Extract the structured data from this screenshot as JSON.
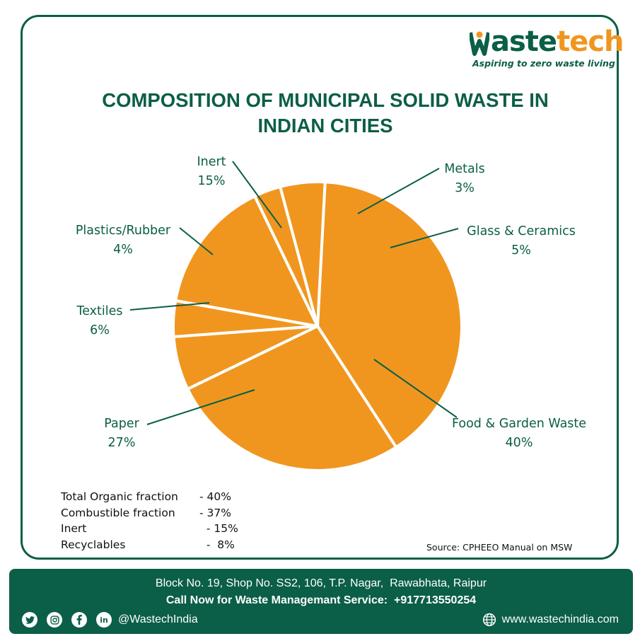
{
  "brand": {
    "logo_first": "W",
    "logo_mid": "aste",
    "logo_end": "ch",
    "logo_te": "te",
    "tagline": "Aspiring to zero waste living",
    "colors": {
      "green": "#0b5e47",
      "orange": "#f0961f"
    }
  },
  "chart_data": {
    "type": "pie",
    "title": "COMPOSITION OF MUNICIPAL SOLID WASTE IN INDIAN CITIES",
    "slices": [
      {
        "label": "Food & Garden Waste",
        "value": 40,
        "pct_label": "40%"
      },
      {
        "label": "Paper",
        "value": 27,
        "pct_label": "27%"
      },
      {
        "label": "Textiles",
        "value": 6,
        "pct_label": "6%"
      },
      {
        "label": "Plastics/Rubber",
        "value": 4,
        "pct_label": "4%"
      },
      {
        "label": "Inert",
        "value": 15,
        "pct_label": "15%"
      },
      {
        "label": "Metals",
        "value": 3,
        "pct_label": "3%"
      },
      {
        "label": "Glass & Ceramics",
        "value": 5,
        "pct_label": "5%"
      }
    ],
    "slice_color": "#f0961f",
    "border_color": "#ffffff",
    "label_color": "#0b5e47"
  },
  "summary": [
    {
      "label": "Total Organic fraction",
      "value": "- 40%"
    },
    {
      "label": "Combustible fraction",
      "value": "- 37%"
    },
    {
      "label": "Inert",
      "value": "  - 15%"
    },
    {
      "label": "Recyclables",
      "value": "  -  8%"
    }
  ],
  "source": "Source: CPHEEO Manual on MSW",
  "footer": {
    "address": "Block No. 19, Shop No. SS2, 106, T.P. Nagar,  Rawabhata, Raipur",
    "call": "Call Now for Waste Managemant Service:  +917713550254",
    "handle": "@WastechIndia",
    "website": "www.wastechindia.com",
    "icons": [
      "twitter-icon",
      "instagram-icon",
      "facebook-icon",
      "linkedin-icon",
      "globe-icon"
    ]
  }
}
